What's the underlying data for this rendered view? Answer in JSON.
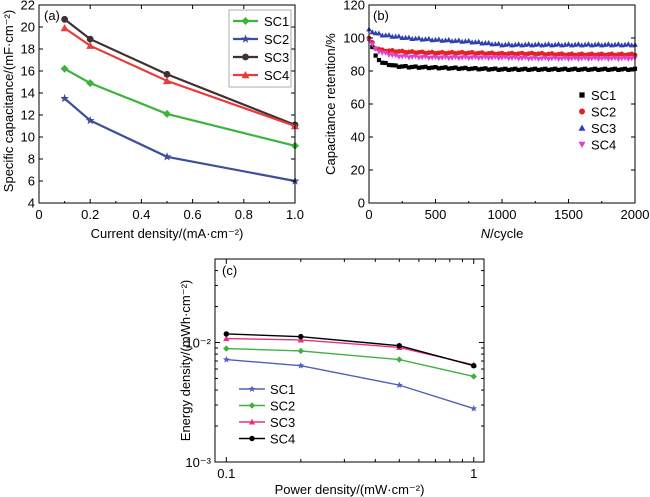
{
  "chart_data": [
    {
      "panel": "(a)",
      "type": "line",
      "xlabel": "Current density/(mA·cm⁻²)",
      "ylabel": "Specific capacitance/(mF·cm⁻²)",
      "xlim": [
        0,
        1.0
      ],
      "ylim": [
        4,
        22
      ],
      "xticks": [
        0,
        0.2,
        0.4,
        0.6,
        0.8,
        1.0
      ],
      "xtick_labels": [
        "0",
        "0.2",
        "0.4",
        "0.6",
        "0.8",
        "1.0"
      ],
      "yticks": [
        4,
        6,
        8,
        10,
        12,
        14,
        16,
        18,
        20,
        22
      ],
      "ytick_labels": [
        "4",
        "6",
        "8",
        "10",
        "12",
        "14",
        "16",
        "18",
        "20",
        "22"
      ],
      "legend_position": "top-right",
      "series": [
        {
          "name": "SC1",
          "color": "#3cb43c",
          "marker": "diamond",
          "x": [
            0.1,
            0.2,
            0.5,
            1.0
          ],
          "y": [
            16.2,
            14.9,
            12.1,
            9.2
          ]
        },
        {
          "name": "SC2",
          "color": "#3d4e9c",
          "marker": "star",
          "x": [
            0.1,
            0.2,
            0.5,
            1.0
          ],
          "y": [
            13.5,
            11.5,
            8.2,
            6.0
          ]
        },
        {
          "name": "SC3",
          "color": "#403030",
          "marker": "circle",
          "x": [
            0.1,
            0.2,
            0.5,
            1.0
          ],
          "y": [
            20.7,
            18.9,
            15.7,
            11.1
          ]
        },
        {
          "name": "SC4",
          "color": "#e83c3c",
          "marker": "triangle",
          "x": [
            0.1,
            0.2,
            0.5,
            1.0
          ],
          "y": [
            19.9,
            18.3,
            15.1,
            11.0
          ]
        }
      ]
    },
    {
      "panel": "(b)",
      "type": "scatter",
      "xlabel_italic": "N",
      "xlabel_rest": "/cycle",
      "ylabel": "Capacitance retention/%",
      "xlim": [
        0,
        2000
      ],
      "ylim": [
        0,
        120
      ],
      "xticks": [
        0,
        500,
        1000,
        1500,
        2000
      ],
      "xtick_labels": [
        "0",
        "500",
        "1000",
        "1500",
        "2000"
      ],
      "yticks": [
        0,
        20,
        40,
        60,
        80,
        100,
        120
      ],
      "ytick_labels": [
        "0",
        "20",
        "40",
        "60",
        "80",
        "100",
        "120"
      ],
      "legend_position": "right",
      "series": [
        {
          "name": "SC1",
          "color": "#000000",
          "marker": "square",
          "x": [
            0,
            50,
            100,
            200,
            300,
            500,
            750,
            1000,
            1250,
            1500,
            1750,
            2000
          ],
          "y": [
            100,
            89,
            85,
            83,
            82.5,
            82,
            81.5,
            81,
            81,
            81,
            81,
            81
          ]
        },
        {
          "name": "SC2",
          "color": "#e82020",
          "marker": "circle",
          "x": [
            0,
            50,
            100,
            200,
            300,
            500,
            750,
            1000,
            1250,
            1500,
            1750,
            2000
          ],
          "y": [
            100,
            94,
            92.5,
            92,
            91.5,
            91,
            91,
            90.5,
            90.5,
            90,
            90,
            90
          ]
        },
        {
          "name": "SC3",
          "color": "#3040b0",
          "marker": "triangle",
          "x": [
            0,
            50,
            100,
            200,
            300,
            500,
            750,
            1000,
            1250,
            1500,
            1750,
            2000
          ],
          "y": [
            105,
            103,
            102,
            101,
            100,
            99,
            98,
            96,
            96,
            96,
            96,
            96
          ]
        },
        {
          "name": "SC4",
          "color": "#e040d0",
          "marker": "triangle-down",
          "x": [
            0,
            50,
            100,
            200,
            300,
            500,
            750,
            1000,
            1250,
            1500,
            1750,
            2000
          ],
          "y": [
            99,
            93,
            91,
            89,
            88.5,
            88,
            88,
            88,
            87.5,
            87.5,
            87.5,
            87.5
          ]
        }
      ]
    },
    {
      "panel": "(c)",
      "type": "line",
      "xscale": "log",
      "yscale": "log",
      "xlabel": "Power density/(mW·cm⁻²)",
      "ylabel": "Energy density/(mWh·cm⁻²)",
      "xlim": [
        0.09,
        1.1
      ],
      "ylim": [
        0.001,
        0.05
      ],
      "xticks": [
        0.1,
        1
      ],
      "xtick_labels": [
        "0.1",
        "1"
      ],
      "ytick_major": [
        0.001,
        0.01
      ],
      "ytick_labels": [
        "10⁻³",
        "10⁻²"
      ],
      "legend_position": "bottom-left",
      "series": [
        {
          "name": "SC1",
          "color": "#5060b8",
          "marker": "star",
          "x": [
            0.1,
            0.2,
            0.5,
            1.0
          ],
          "y": [
            0.0072,
            0.0064,
            0.0044,
            0.0028
          ]
        },
        {
          "name": "SC2",
          "color": "#40b040",
          "marker": "diamond",
          "x": [
            0.1,
            0.2,
            0.5,
            1.0
          ],
          "y": [
            0.0089,
            0.0085,
            0.0072,
            0.0052
          ]
        },
        {
          "name": "SC3",
          "color": "#e83080",
          "marker": "triangle",
          "x": [
            0.1,
            0.2,
            0.5,
            1.0
          ],
          "y": [
            0.0108,
            0.0105,
            0.0091,
            0.0065
          ]
        },
        {
          "name": "SC4",
          "color": "#000000",
          "marker": "circle",
          "x": [
            0.1,
            0.2,
            0.5,
            1.0
          ],
          "y": [
            0.0118,
            0.0112,
            0.0094,
            0.0064
          ]
        }
      ]
    }
  ]
}
